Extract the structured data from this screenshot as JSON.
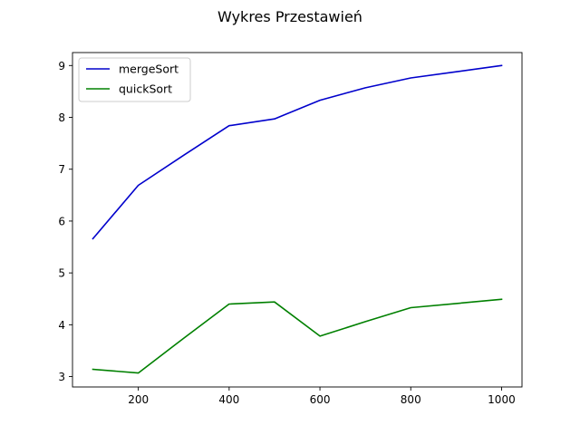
{
  "chart_data": {
    "type": "line",
    "title": "Wykres Przestawień",
    "xlabel": "",
    "ylabel": "",
    "xlim": [
      55,
      1045
    ],
    "ylim": [
      2.8,
      9.25
    ],
    "xticks": [
      200,
      400,
      600,
      800,
      1000
    ],
    "yticks": [
      3,
      4,
      5,
      6,
      7,
      8,
      9
    ],
    "grid": false,
    "legend_position": "top-left",
    "series": [
      {
        "name": "mergeSort",
        "color": "#0000cc",
        "x": [
          100,
          200,
          300,
          400,
          500,
          600,
          700,
          800,
          900,
          1000
        ],
        "y": [
          5.66,
          6.69,
          7.27,
          7.84,
          7.97,
          8.33,
          8.57,
          8.76,
          8.88,
          9.0
        ]
      },
      {
        "name": "quickSort",
        "color": "#008000",
        "x": [
          100,
          200,
          300,
          400,
          500,
          600,
          700,
          800,
          900,
          1000
        ],
        "y": [
          3.14,
          3.07,
          3.74,
          4.4,
          4.44,
          3.78,
          4.06,
          4.33,
          4.41,
          4.49
        ]
      }
    ]
  }
}
